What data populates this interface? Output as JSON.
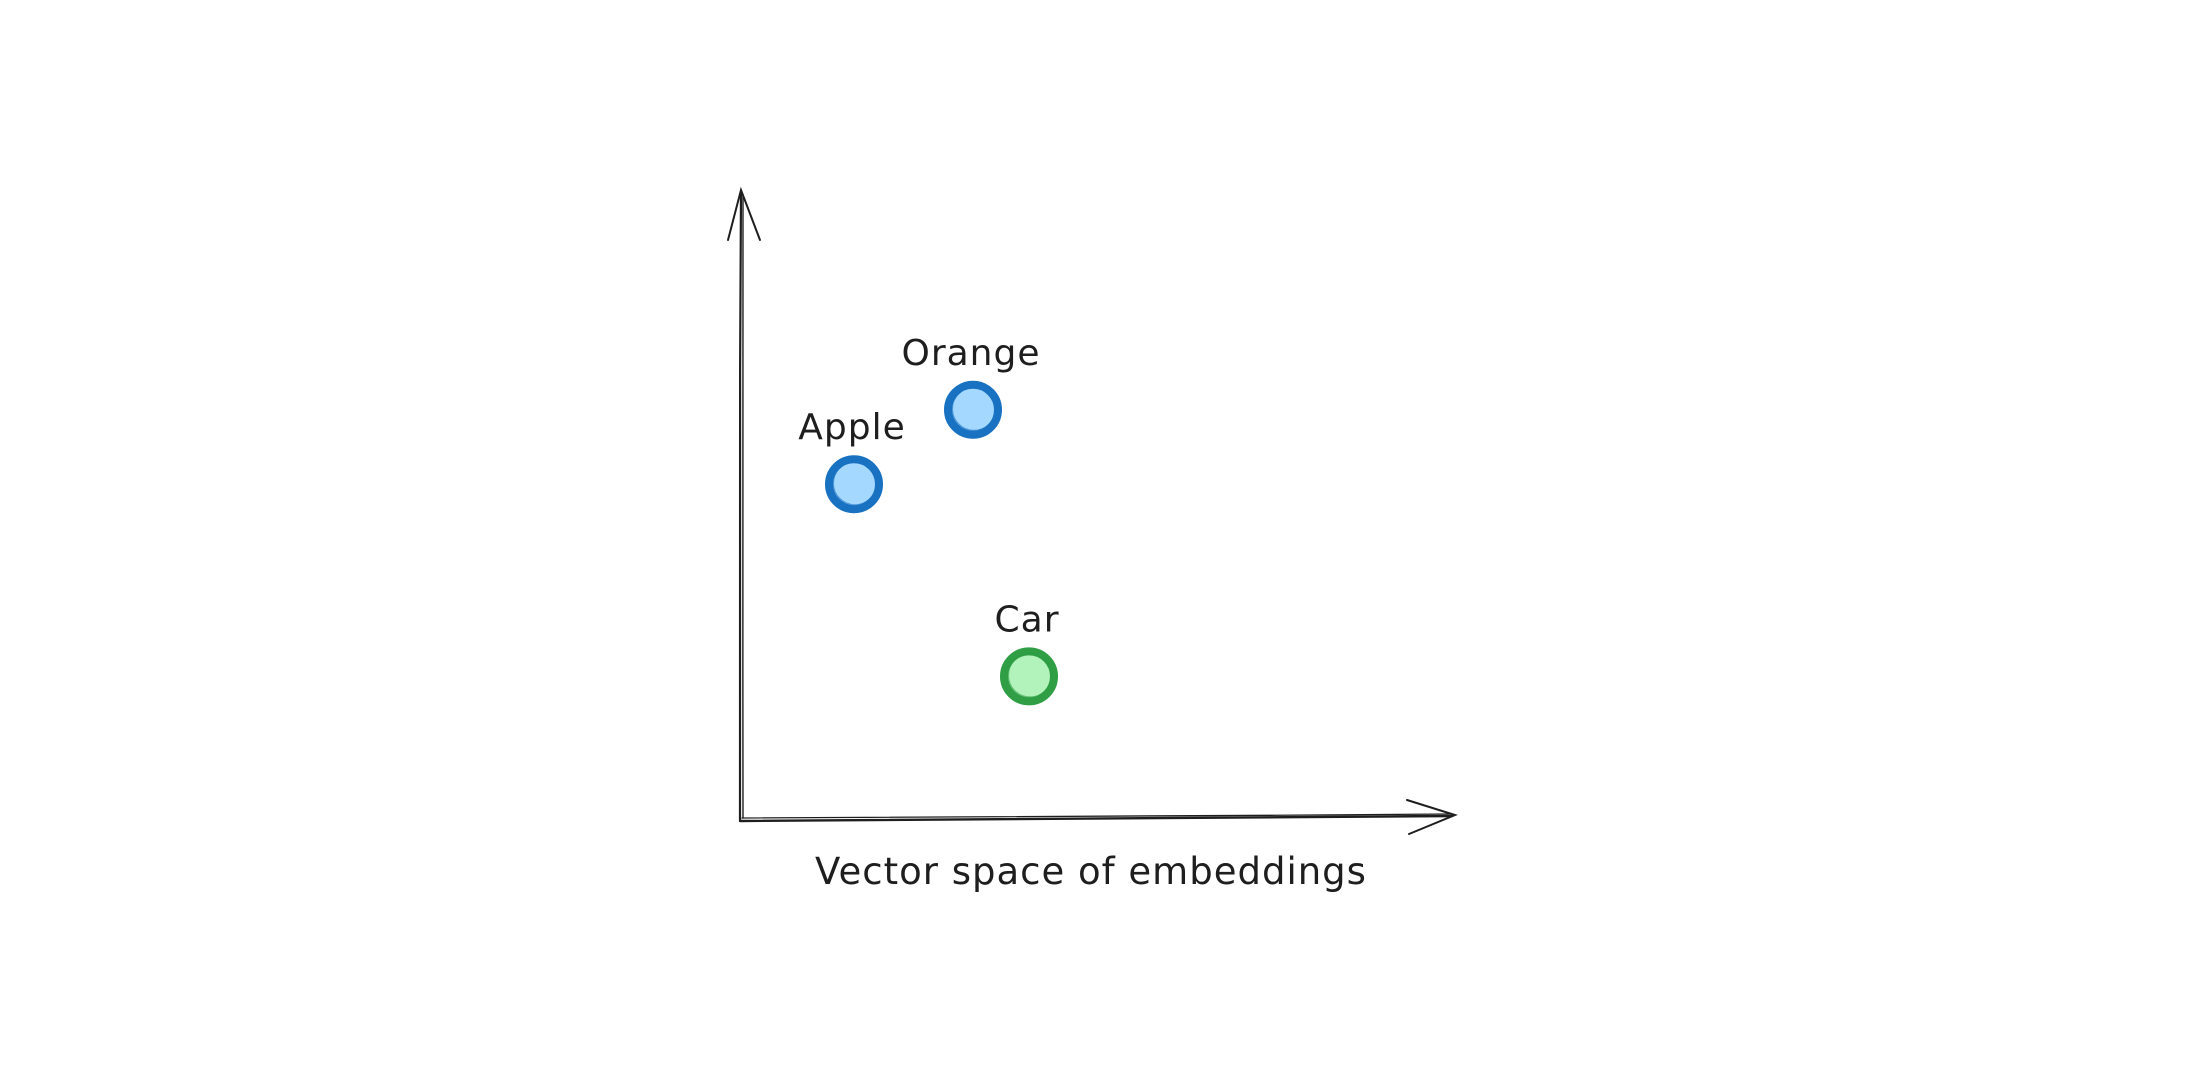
{
  "diagram": {
    "caption": "Vector space of embeddings",
    "colors": {
      "axis": "#1e1e1e",
      "fruit_stroke": "#1971c2",
      "fruit_fill": "#a5d8ff",
      "vehicle_stroke": "#2f9e44",
      "vehicle_fill": "#b2f2bb"
    },
    "points": [
      {
        "label": "Apple",
        "group": "fruit",
        "x": 0.16,
        "y": 0.54
      },
      {
        "label": "Orange",
        "group": "fruit",
        "x": 0.33,
        "y": 0.66
      },
      {
        "label": "Car",
        "group": "vehicle",
        "x": 0.41,
        "y": 0.23
      }
    ]
  }
}
